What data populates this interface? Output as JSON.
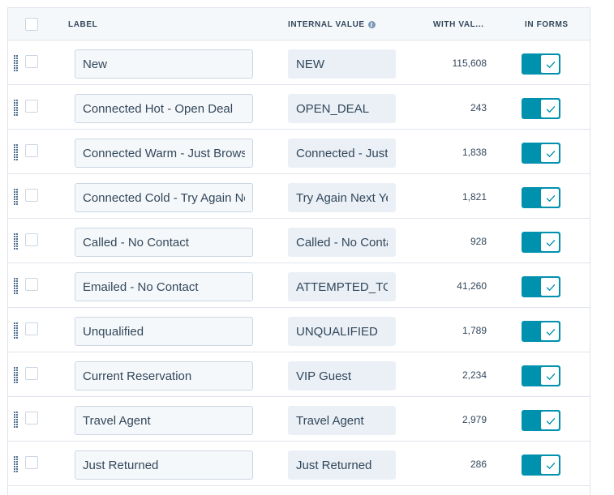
{
  "table": {
    "columns": {
      "label": "LABEL",
      "internal_value": "INTERNAL VALUE",
      "with_value": "WITH VAL...",
      "in_forms": "IN FORMS"
    },
    "rows": [
      {
        "label": "New",
        "internal_value": "NEW",
        "count": "115,608",
        "in_forms": true
      },
      {
        "label": "Connected Hot - Open Deal",
        "internal_value": "OPEN_DEAL",
        "count": "243",
        "in_forms": true
      },
      {
        "label": "Connected Warm - Just Browsing",
        "internal_value": "Connected - Just Browsing",
        "count": "1,838",
        "in_forms": true
      },
      {
        "label": "Connected Cold - Try Again Next Year",
        "internal_value": "Try Again Next Year",
        "count": "1,821",
        "in_forms": true
      },
      {
        "label": "Called - No Contact",
        "internal_value": "Called - No Contact",
        "count": "928",
        "in_forms": true
      },
      {
        "label": "Emailed - No Contact",
        "internal_value": "ATTEMPTED_TO_CONTACT",
        "count": "41,260",
        "in_forms": true
      },
      {
        "label": "Unqualified",
        "internal_value": "UNQUALIFIED",
        "count": "1,789",
        "in_forms": true
      },
      {
        "label": "Current Reservation",
        "internal_value": "VIP Guest",
        "count": "2,234",
        "in_forms": true
      },
      {
        "label": "Travel Agent",
        "internal_value": "Travel Agent",
        "count": "2,979",
        "in_forms": true
      },
      {
        "label": "Just Returned",
        "internal_value": "Just Returned",
        "count": "286",
        "in_forms": true
      }
    ]
  },
  "colors": {
    "toggle_on": "#0091ae",
    "header_bg": "#f5f8fa",
    "border": "#dfe3eb",
    "text": "#33475b"
  },
  "icons": {
    "info": "info-icon",
    "drag": "drag-handle-icon",
    "check": "check-icon"
  }
}
